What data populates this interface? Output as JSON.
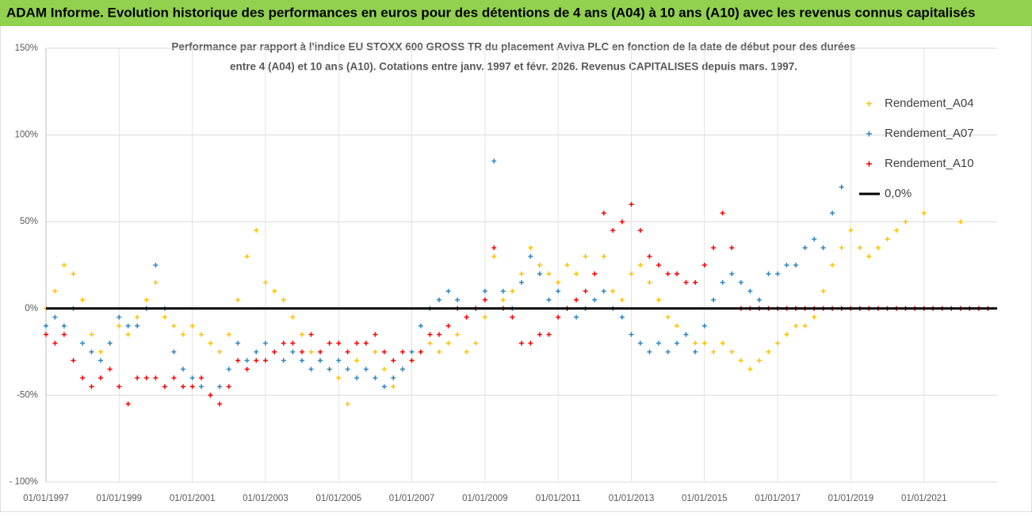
{
  "chart_data": {
    "type": "scatter",
    "title": "ADAM Informe. Evolution historique des performances en euros pour des détentions de 4 ans (A04) à 10 ans (A10) avec les revenus connus capitalisés",
    "subtitle": [
      "Performance par rapport à l'indice EU STOXX 600 GROSS TR  du placement Aviva PLC en fonction de la date de début pour des durées",
      "entre 4 (A04) et 10 ans (A10). Cotations entre janv. 1997 et févr. 2026. Revenus CAPITALISES depuis mars. 1997."
    ],
    "xlim": [
      "1997-01-01",
      "2023-01-01"
    ],
    "xticks": [
      {
        "value": "1997-01-01",
        "label": "01/01/1997"
      },
      {
        "value": "1999-01-01",
        "label": "01/01/1999"
      },
      {
        "value": "2001-01-01",
        "label": "01/01/2001"
      },
      {
        "value": "2003-01-01",
        "label": "01/01/2003"
      },
      {
        "value": "2005-01-01",
        "label": "01/01/2005"
      },
      {
        "value": "2007-01-01",
        "label": "01/01/2007"
      },
      {
        "value": "2009-01-01",
        "label": "01/01/2009"
      },
      {
        "value": "2011-01-01",
        "label": "01/01/2011"
      },
      {
        "value": "2013-01-01",
        "label": "01/01/2013"
      },
      {
        "value": "2015-01-01",
        "label": "01/01/2015"
      },
      {
        "value": "2017-01-01",
        "label": "01/01/2017"
      },
      {
        "value": "2019-01-01",
        "label": "01/01/2019"
      },
      {
        "value": "2021-01-01",
        "label": "01/01/2021"
      }
    ],
    "ylim": [
      -100,
      150
    ],
    "yticks": [
      {
        "value": -100,
        "label": "- 100%"
      },
      {
        "value": -50,
        "label": "-50%"
      },
      {
        "value": 0,
        "label": "0%"
      },
      {
        "value": 50,
        "label": "50%"
      },
      {
        "value": 100,
        "label": "100%"
      },
      {
        "value": 150,
        "label": "150%"
      }
    ],
    "grid": true,
    "legend": "right",
    "series": [
      {
        "name": "Rendement_A04",
        "color": "#ffc000",
        "marker": "plus",
        "x": [
          "1997-01-01",
          "1997-04-01",
          "1997-07-01",
          "1997-10-01",
          "1998-01-01",
          "1998-04-01",
          "1998-07-01",
          "1998-10-01",
          "1999-01-01",
          "1999-04-01",
          "1999-07-01",
          "1999-10-01",
          "2000-01-01",
          "2000-04-01",
          "2000-07-01",
          "2000-10-01",
          "2001-01-01",
          "2001-04-01",
          "2001-07-01",
          "2001-10-01",
          "2002-01-01",
          "2002-04-01",
          "2002-07-01",
          "2002-10-01",
          "2003-01-01",
          "2003-04-01",
          "2003-07-01",
          "2003-10-01",
          "2004-01-01",
          "2004-04-01",
          "2004-07-01",
          "2004-10-01",
          "2005-01-01",
          "2005-04-01",
          "2005-07-01",
          "2005-10-01",
          "2006-01-01",
          "2006-04-01",
          "2006-07-01",
          "2006-10-01",
          "2007-01-01",
          "2007-04-01",
          "2007-07-01",
          "2007-10-01",
          "2008-01-01",
          "2008-04-01",
          "2008-07-01",
          "2008-10-01",
          "2009-01-01",
          "2009-04-01",
          "2009-07-01",
          "2009-10-01",
          "2010-01-01",
          "2010-04-01",
          "2010-07-01",
          "2010-10-01",
          "2011-01-01",
          "2011-04-01",
          "2011-07-01",
          "2011-10-01",
          "2012-01-01",
          "2012-04-01",
          "2012-07-01",
          "2012-10-01",
          "2013-01-01",
          "2013-04-01",
          "2013-07-01",
          "2013-10-01",
          "2014-01-01",
          "2014-04-01",
          "2014-07-01",
          "2014-10-01",
          "2015-01-01",
          "2015-04-01",
          "2015-07-01",
          "2015-10-01",
          "2016-01-01",
          "2016-04-01",
          "2016-07-01",
          "2016-10-01",
          "2017-01-01",
          "2017-04-01",
          "2017-07-01",
          "2017-10-01",
          "2018-01-01",
          "2018-04-01",
          "2018-07-01",
          "2018-10-01",
          "2019-01-01",
          "2019-04-01",
          "2019-07-01",
          "2019-10-01",
          "2020-01-01",
          "2020-04-01",
          "2020-07-01",
          "2021-01-01",
          "2022-01-01"
        ],
        "values": [
          0,
          10,
          25,
          20,
          5,
          -15,
          -25,
          -20,
          -10,
          -15,
          -5,
          5,
          15,
          -5,
          -10,
          -15,
          -10,
          -15,
          -20,
          -25,
          -15,
          5,
          30,
          45,
          15,
          10,
          5,
          -5,
          -15,
          -25,
          -30,
          -35,
          -40,
          -55,
          -30,
          -20,
          -25,
          -35,
          -45,
          -35,
          -30,
          -25,
          -20,
          -25,
          -20,
          -15,
          -25,
          -20,
          -5,
          30,
          5,
          10,
          20,
          35,
          25,
          20,
          15,
          25,
          20,
          30,
          20,
          30,
          10,
          5,
          20,
          25,
          15,
          5,
          -5,
          -10,
          -15,
          -20,
          -20,
          -25,
          -20,
          -25,
          -30,
          -35,
          -30,
          -25,
          -20,
          -15,
          -10,
          -10,
          -5,
          10,
          25,
          35,
          45,
          35,
          30,
          35,
          40,
          45,
          50,
          55,
          50
        ]
      },
      {
        "name": "Rendement_A07",
        "color": "#2e86c1",
        "marker": "plus",
        "x": [
          "1997-01-01",
          "1997-04-01",
          "1997-07-01",
          "1997-10-01",
          "1998-01-01",
          "1998-04-01",
          "1998-07-01",
          "1998-10-01",
          "1999-01-01",
          "1999-04-01",
          "1999-07-01",
          "1999-10-01",
          "2000-01-01",
          "2000-04-01",
          "2000-07-01",
          "2000-10-01",
          "2001-01-01",
          "2001-04-01",
          "2001-07-01",
          "2001-10-01",
          "2002-01-01",
          "2002-04-01",
          "2002-07-01",
          "2002-10-01",
          "2003-01-01",
          "2003-04-01",
          "2003-07-01",
          "2003-10-01",
          "2004-01-01",
          "2004-04-01",
          "2004-07-01",
          "2004-10-01",
          "2005-01-01",
          "2005-04-01",
          "2005-07-01",
          "2005-10-01",
          "2006-01-01",
          "2006-04-01",
          "2006-07-01",
          "2006-10-01",
          "2007-01-01",
          "2007-04-01",
          "2007-07-01",
          "2007-10-01",
          "2008-01-01",
          "2008-04-01",
          "2008-07-01",
          "2008-10-01",
          "2009-01-01",
          "2009-04-01",
          "2009-07-01",
          "2009-10-01",
          "2010-01-01",
          "2010-04-01",
          "2010-07-01",
          "2010-10-01",
          "2011-01-01",
          "2011-04-01",
          "2011-07-01",
          "2011-10-01",
          "2012-01-01",
          "2012-04-01",
          "2012-07-01",
          "2012-10-01",
          "2013-01-01",
          "2013-04-01",
          "2013-07-01",
          "2013-10-01",
          "2014-01-01",
          "2014-04-01",
          "2014-07-01",
          "2014-10-01",
          "2015-01-01",
          "2015-04-01",
          "2015-07-01",
          "2015-10-01",
          "2016-01-01",
          "2016-04-01",
          "2016-07-01",
          "2016-10-01",
          "2017-01-01",
          "2017-04-01",
          "2017-07-01",
          "2017-10-01",
          "2018-01-01",
          "2018-04-01",
          "2018-07-01",
          "2018-10-01"
        ],
        "values": [
          -10,
          -5,
          -10,
          0,
          -20,
          -25,
          -30,
          -20,
          -5,
          -10,
          -10,
          0,
          25,
          0,
          -25,
          -35,
          -40,
          -45,
          -50,
          -45,
          -35,
          -20,
          -30,
          -25,
          -20,
          -25,
          -30,
          -25,
          -30,
          -35,
          -30,
          -35,
          -30,
          -35,
          -40,
          -35,
          -40,
          -45,
          -40,
          -35,
          -25,
          -10,
          0,
          5,
          10,
          5,
          -5,
          0,
          10,
          85,
          10,
          0,
          15,
          30,
          20,
          5,
          10,
          0,
          -5,
          0,
          5,
          10,
          0,
          -5,
          -15,
          -20,
          -25,
          -20,
          -25,
          -20,
          -15,
          -25,
          -10,
          5,
          15,
          20,
          15,
          10,
          5,
          20,
          20,
          25,
          25,
          35,
          40,
          35,
          55,
          70
        ]
      },
      {
        "name": "Rendement_A10",
        "color": "#ff0000",
        "marker": "plus",
        "x": [
          "1997-01-01",
          "1997-04-01",
          "1997-07-01",
          "1997-10-01",
          "1998-01-01",
          "1998-04-01",
          "1998-07-01",
          "1998-10-01",
          "1999-01-01",
          "1999-04-01",
          "1999-07-01",
          "1999-10-01",
          "2000-01-01",
          "2000-04-01",
          "2000-07-01",
          "2000-10-01",
          "2001-01-01",
          "2001-04-01",
          "2001-07-01",
          "2001-10-01",
          "2002-01-01",
          "2002-04-01",
          "2002-07-01",
          "2002-10-01",
          "2003-01-01",
          "2003-04-01",
          "2003-07-01",
          "2003-10-01",
          "2004-01-01",
          "2004-04-01",
          "2004-07-01",
          "2004-10-01",
          "2005-01-01",
          "2005-04-01",
          "2005-07-01",
          "2005-10-01",
          "2006-01-01",
          "2006-04-01",
          "2006-07-01",
          "2006-10-01",
          "2007-01-01",
          "2007-04-01",
          "2007-07-01",
          "2007-10-01",
          "2008-01-01",
          "2008-04-01",
          "2008-07-01",
          "2008-10-01",
          "2009-01-01",
          "2009-04-01",
          "2009-07-01",
          "2009-10-01",
          "2010-01-01",
          "2010-04-01",
          "2010-07-01",
          "2010-10-01",
          "2011-01-01",
          "2011-04-01",
          "2011-07-01",
          "2011-10-01",
          "2012-01-01",
          "2012-04-01",
          "2012-07-01",
          "2012-10-01",
          "2013-01-01",
          "2013-04-01",
          "2013-07-01",
          "2013-10-01",
          "2014-01-01",
          "2014-04-01",
          "2014-07-01",
          "2014-10-01",
          "2015-01-01",
          "2015-04-01",
          "2015-07-01",
          "2015-10-01",
          "2016-01-01",
          "2016-04-01",
          "2016-07-01",
          "2016-10-01",
          "2017-01-01",
          "2017-04-01",
          "2017-07-01",
          "2017-10-01",
          "2018-01-01",
          "2018-04-01",
          "2018-07-01",
          "2018-10-01",
          "2019-01-01",
          "2019-04-01",
          "2019-07-01",
          "2019-10-01",
          "2020-01-01",
          "2020-04-01",
          "2020-07-01",
          "2020-10-01",
          "2021-01-01",
          "2021-04-01",
          "2021-07-01",
          "2021-10-01",
          "2022-01-01",
          "2022-04-01",
          "2022-07-01",
          "2022-10-01"
        ],
        "values": [
          -15,
          -20,
          -15,
          -30,
          -40,
          -45,
          -40,
          -35,
          -45,
          -55,
          -40,
          -40,
          -40,
          -45,
          -40,
          -45,
          -45,
          -40,
          -50,
          -55,
          -45,
          -30,
          -35,
          -30,
          -30,
          -25,
          -20,
          -20,
          -25,
          -15,
          -25,
          -20,
          -20,
          -25,
          -20,
          -20,
          -15,
          -25,
          -30,
          -25,
          -30,
          -25,
          -15,
          -15,
          -10,
          0,
          -5,
          0,
          5,
          35,
          0,
          -5,
          -20,
          -20,
          -15,
          -15,
          -5,
          0,
          5,
          10,
          20,
          55,
          45,
          50,
          60,
          45,
          30,
          25,
          20,
          20,
          15,
          15,
          25,
          35,
          55,
          35,
          0,
          0,
          0,
          0,
          0,
          0,
          0,
          0,
          0,
          0,
          0,
          0,
          0,
          0,
          0,
          0,
          0,
          0,
          0,
          0,
          0,
          0,
          0,
          0,
          0,
          0,
          0,
          0
        ]
      },
      {
        "name": "0,0%",
        "color": "#000000",
        "marker": "line",
        "x": [
          "1997-01-01",
          "2023-01-01"
        ],
        "values": [
          0,
          0
        ]
      }
    ]
  }
}
